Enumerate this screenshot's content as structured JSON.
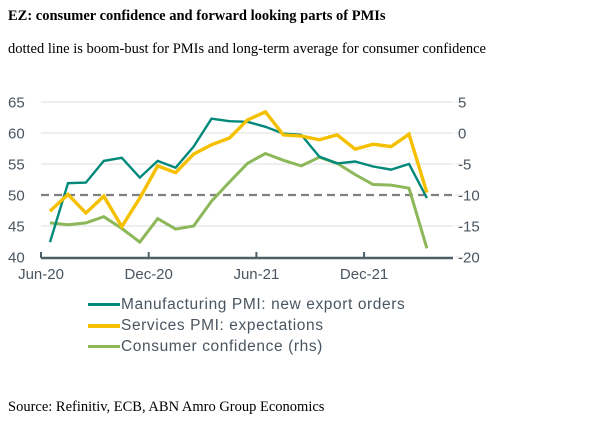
{
  "header": {
    "title": "EZ: consumer confidence and forward looking parts of PMIs",
    "subtitle": "dotted line is boom-bust for PMIs and long-term average for consumer confidence"
  },
  "footer": {
    "source": "Source: Refinitiv, ECB, ABN Amro Group Economics"
  },
  "chart_data": {
    "type": "line",
    "title": "EZ: consumer confidence and forward looking parts of PMIs",
    "subtitle": "dotted line is boom-bust for PMIs and long-term average for consumer confidence",
    "xlabel": "",
    "ylabel": "",
    "ylabel_right": "",
    "x": [
      "Jun-20",
      "Jul-20",
      "Aug-20",
      "Sep-20",
      "Oct-20",
      "Nov-20",
      "Dec-20",
      "Jan-21",
      "Feb-21",
      "Mar-21",
      "Apr-21",
      "May-21",
      "Jun-21",
      "Jul-21",
      "Aug-21",
      "Sep-21",
      "Oct-21",
      "Nov-21",
      "Dec-21",
      "Jan-22",
      "Feb-22",
      "Mar-22"
    ],
    "x_tick_labels": [
      "Jun-20",
      "Dec-20",
      "Jun-21",
      "Dec-21"
    ],
    "ylim": [
      40,
      65
    ],
    "y_ticks": [
      40,
      45,
      50,
      55,
      60,
      65
    ],
    "ylim_right": [
      -20,
      5
    ],
    "y_ticks_right": [
      -20,
      -15,
      -10,
      -5,
      0,
      5
    ],
    "grid": true,
    "reference_line": {
      "axis": "left",
      "value": 50,
      "style": "dashed",
      "color": "#808080"
    },
    "series": [
      {
        "name": "Manufacturing PMI: new export orders",
        "axis": "left",
        "color": "#00897b",
        "values": [
          42.4,
          51.9,
          52.0,
          55.5,
          56.0,
          52.8,
          55.5,
          54.4,
          57.8,
          62.3,
          61.9,
          61.8,
          61.0,
          59.9,
          59.7,
          56.2,
          55.1,
          55.4,
          54.6,
          54.1,
          55.0,
          49.5
        ]
      },
      {
        "name": "Services PMI: expectations",
        "axis": "left",
        "color": "#f5c000",
        "values": [
          47.4,
          50.1,
          47.1,
          49.8,
          44.9,
          49.5,
          54.7,
          53.6,
          56.6,
          58.1,
          59.2,
          62.1,
          63.4,
          59.7,
          59.5,
          58.9,
          59.7,
          57.4,
          58.2,
          57.8,
          59.8,
          50.4
        ]
      },
      {
        "name": "Consumer confidence (rhs)",
        "axis": "right",
        "color": "#8db85a",
        "values": [
          -14.5,
          -14.8,
          -14.5,
          -13.5,
          -15.4,
          -17.6,
          -13.8,
          -15.5,
          -15.0,
          -11.0,
          -7.9,
          -4.9,
          -3.3,
          -4.4,
          -5.3,
          -3.9,
          -4.9,
          -6.7,
          -8.3,
          -8.4,
          -8.9,
          -18.6
        ]
      }
    ],
    "legend_position": "bottom-left"
  }
}
